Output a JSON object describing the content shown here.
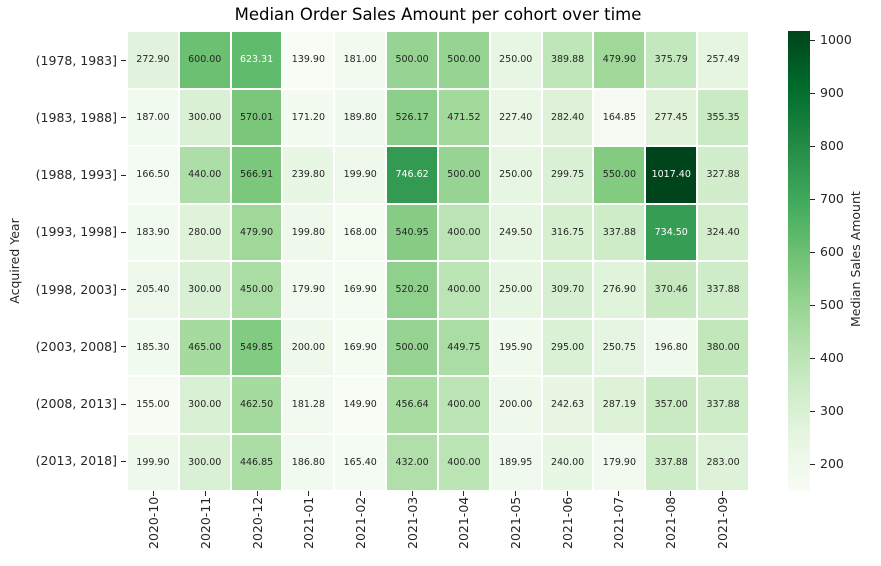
{
  "figure": {
    "background": "#ffffff"
  },
  "chart_data": {
    "type": "heatmap",
    "title": "Median Order Sales Amount per cohort over time",
    "xlabel": "",
    "ylabel": "Acquired Year",
    "colorbar_label": "Median Sales Amount",
    "x_categories": [
      "2020-10",
      "2020-11",
      "2020-12",
      "2021-01",
      "2021-02",
      "2021-03",
      "2021-04",
      "2021-05",
      "2021-06",
      "2021-07",
      "2021-08",
      "2021-09"
    ],
    "y_categories": [
      "(1978, 1983]",
      "(1983, 1988]",
      "(1988, 1993]",
      "(1993, 1998]",
      "(1998, 2003]",
      "(2003, 2008]",
      "(2008, 2013]",
      "(2013, 2018]"
    ],
    "values": [
      [
        272.9,
        600.0,
        623.31,
        139.9,
        181.0,
        500.0,
        500.0,
        250.0,
        389.88,
        479.9,
        375.79,
        257.49
      ],
      [
        187.0,
        300.0,
        570.01,
        171.2,
        189.8,
        526.17,
        471.52,
        227.4,
        282.4,
        164.85,
        277.45,
        355.35
      ],
      [
        166.5,
        440.0,
        566.91,
        239.8,
        199.9,
        746.62,
        500.0,
        250.0,
        299.75,
        550.0,
        1017.4,
        327.88
      ],
      [
        183.9,
        280.0,
        479.9,
        199.8,
        168.0,
        540.95,
        400.0,
        249.5,
        316.75,
        337.88,
        734.5,
        324.4
      ],
      [
        205.4,
        300.0,
        450.0,
        179.9,
        169.9,
        520.2,
        400.0,
        250.0,
        309.7,
        276.9,
        370.46,
        337.88
      ],
      [
        185.3,
        465.0,
        549.85,
        200.0,
        169.9,
        500.0,
        449.75,
        195.9,
        295.0,
        250.75,
        196.8,
        380.0
      ],
      [
        155.0,
        300.0,
        462.5,
        181.28,
        149.9,
        456.64,
        400.0,
        200.0,
        242.63,
        287.19,
        357.0,
        337.88
      ],
      [
        199.9,
        300.0,
        446.85,
        186.8,
        165.4,
        432.0,
        400.0,
        189.95,
        240.0,
        179.9,
        337.88,
        283.0
      ]
    ],
    "value_decimals": 2,
    "vmin": 149.9,
    "vmax": 1017.4,
    "colormap": "Greens",
    "colormap_stops": [
      "#f7fcf5",
      "#e5f5e0",
      "#c7e9c0",
      "#a1d99b",
      "#74c476",
      "#41ab5d",
      "#238b45",
      "#006d2c",
      "#00441b"
    ],
    "colorbar_ticks": [
      200,
      300,
      400,
      500,
      600,
      700,
      800,
      900,
      1000
    ],
    "annotation_dark_color": "#262626",
    "annotation_light_color": "#ffffff",
    "tick_color": "#262626",
    "legend_position": "right-colorbar",
    "grid": false,
    "cell_gap_color": "#ffffff"
  }
}
